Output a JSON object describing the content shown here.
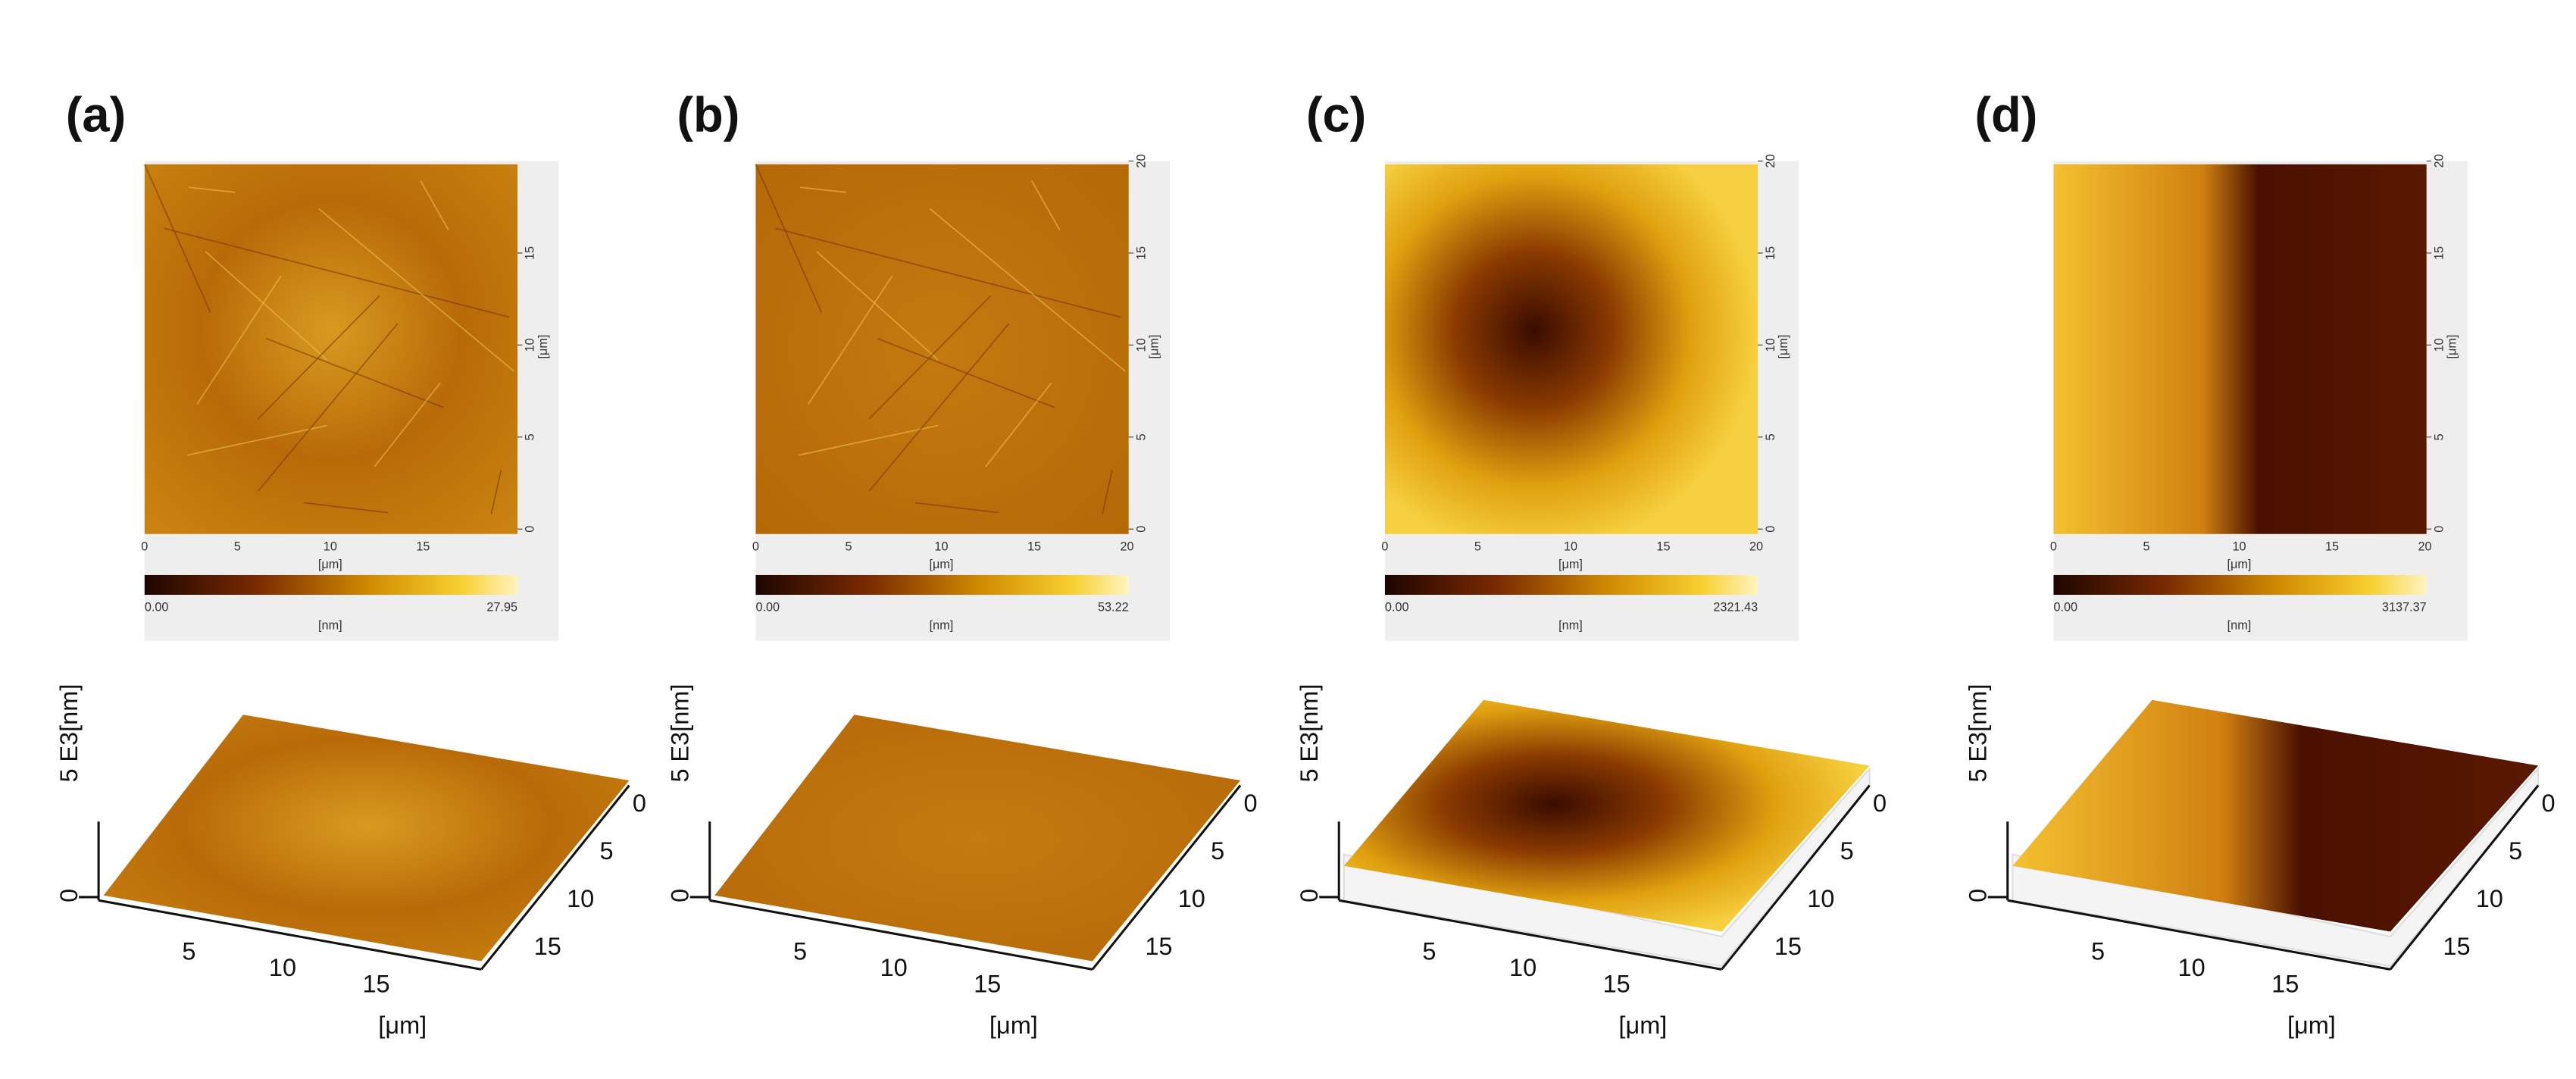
{
  "panels": [
    {
      "label": "(a)",
      "map": {
        "x_ticks": [
          "0",
          "5",
          "10",
          "15"
        ],
        "y_ticks": [
          "0",
          "5",
          "10",
          "15"
        ],
        "x_unit": "[μm]",
        "y_unit": "[μm]",
        "colorbar": {
          "min": "0.00",
          "max": "27.95",
          "unit": "[nm]"
        }
      },
      "surface": {
        "z_label": "E3[nm]",
        "z_ticks": [
          "0",
          "5"
        ],
        "x_ticks": [
          "5",
          "10",
          "15"
        ],
        "y_ticks": [
          "0",
          "5",
          "10",
          "15"
        ],
        "unit": "[μm]"
      }
    },
    {
      "label": "(b)",
      "map": {
        "x_ticks": [
          "0",
          "5",
          "10",
          "15",
          "20"
        ],
        "y_ticks": [
          "0",
          "5",
          "10",
          "15",
          "20"
        ],
        "x_unit": "[μm]",
        "y_unit": "[μm]",
        "colorbar": {
          "min": "0.00",
          "max": "53.22",
          "unit": "[nm]"
        }
      },
      "surface": {
        "z_label": "E3[nm]",
        "z_ticks": [
          "0",
          "5"
        ],
        "x_ticks": [
          "5",
          "10",
          "15"
        ],
        "y_ticks": [
          "0",
          "5",
          "10",
          "15"
        ],
        "unit": "[μm]"
      }
    },
    {
      "label": "(c)",
      "map": {
        "x_ticks": [
          "0",
          "5",
          "10",
          "15",
          "20"
        ],
        "y_ticks": [
          "0",
          "5",
          "10",
          "15",
          "20"
        ],
        "x_unit": "[μm]",
        "y_unit": "[μm]",
        "colorbar": {
          "min": "0.00",
          "max": "2321.43",
          "unit": "[nm]"
        }
      },
      "surface": {
        "z_label": "E3[nm]",
        "z_ticks": [
          "0",
          "5"
        ],
        "x_ticks": [
          "5",
          "10",
          "15"
        ],
        "y_ticks": [
          "0",
          "5",
          "10",
          "15"
        ],
        "unit": "[μm]"
      }
    },
    {
      "label": "(d)",
      "map": {
        "x_ticks": [
          "0",
          "5",
          "10",
          "15",
          "20"
        ],
        "y_ticks": [
          "0",
          "5",
          "10",
          "15",
          "20"
        ],
        "x_unit": "[μm]",
        "y_unit": "[μm]",
        "colorbar": {
          "min": "0.00",
          "max": "3137.37",
          "unit": "[nm]"
        }
      },
      "surface": {
        "z_label": "E3[nm]",
        "z_ticks": [
          "0",
          "5"
        ],
        "x_ticks": [
          "5",
          "10",
          "15"
        ],
        "y_ticks": [
          "0",
          "5",
          "10",
          "15"
        ],
        "unit": "[μm]"
      }
    }
  ]
}
